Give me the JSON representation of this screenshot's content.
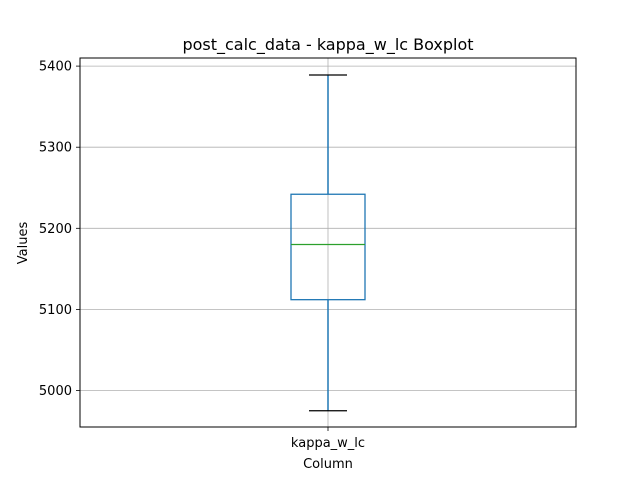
{
  "chart_data": {
    "type": "boxplot",
    "title": "post_calc_data - kappa_w_lc Boxplot",
    "xlabel": "Column",
    "ylabel": "Values",
    "categories": [
      "kappa_w_lc"
    ],
    "boxes": [
      {
        "name": "kappa_w_lc",
        "whisker_low": 4975,
        "q1": 5112,
        "median": 5180,
        "q3": 5242,
        "whisker_high": 5389
      }
    ],
    "ylim": [
      4955,
      5410
    ],
    "yticks": [
      5000,
      5100,
      5200,
      5300,
      5400
    ],
    "grid": true,
    "colors": {
      "box": "#1f77b4",
      "median": "#2ca02c",
      "whisker": "#1f77b4",
      "cap": "#000000",
      "grid": "#b0b0b0"
    }
  }
}
